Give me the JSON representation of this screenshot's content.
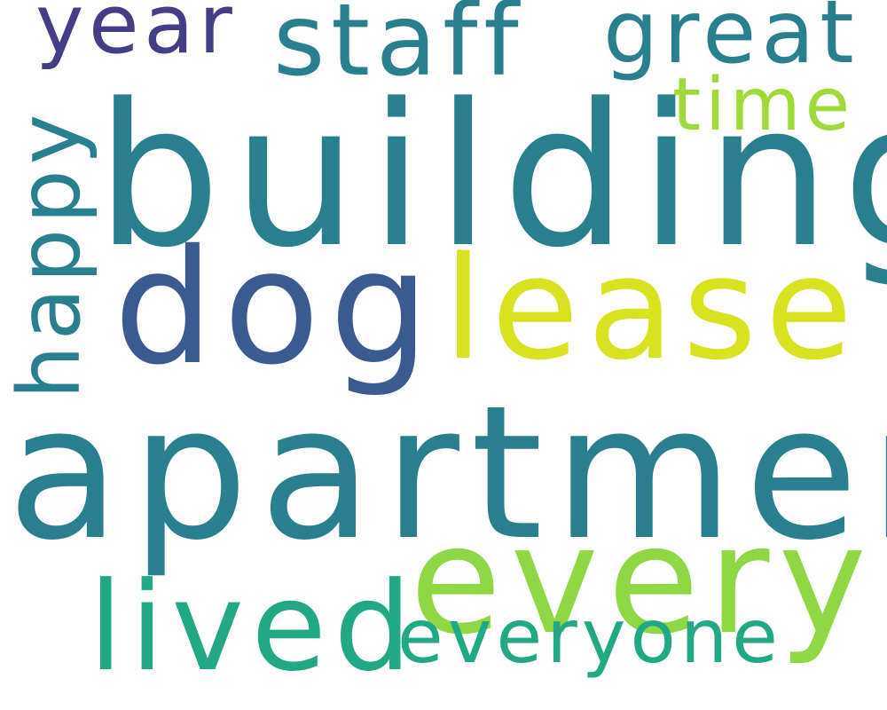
{
  "words": {
    "building": {
      "text": "building",
      "color": "#2a7f8e"
    },
    "apartment": {
      "text": "apartment",
      "color": "#2a7f8e"
    },
    "dog": {
      "text": "dog",
      "color": "#3b5a8f"
    },
    "lease": {
      "text": "lease",
      "color": "#d9e21f"
    },
    "every": {
      "text": "every",
      "color": "#8fd744"
    },
    "staff": {
      "text": "staff",
      "color": "#2a7f8e"
    },
    "lived": {
      "text": "lived",
      "color": "#22a884"
    },
    "great": {
      "text": "great",
      "color": "#2a7f8e"
    },
    "year": {
      "text": "year",
      "color": "#433e85"
    },
    "everyone": {
      "text": "everyone",
      "color": "#22a884"
    },
    "time": {
      "text": "time",
      "color": "#a0da39"
    },
    "happy": {
      "text": "happy",
      "color": "#2a7f8e"
    }
  }
}
